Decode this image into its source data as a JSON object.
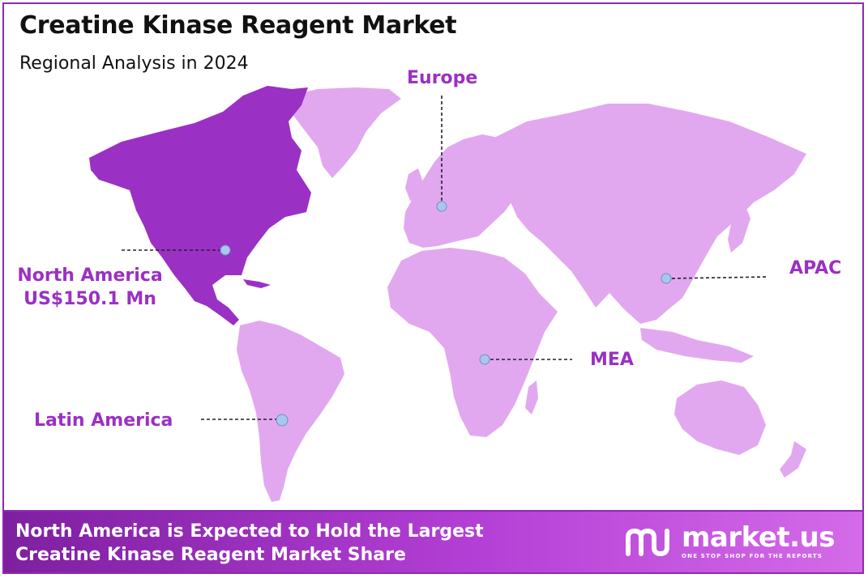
{
  "title": "Creatine Kinase Reagent Market",
  "subtitle": "Regional Analysis in 2024",
  "regions": [
    {
      "name": "North America",
      "value": "US$150.1 Mn",
      "highlighted": true
    },
    {
      "name": "Europe",
      "highlighted": false
    },
    {
      "name": "APAC",
      "highlighted": false
    },
    {
      "name": "MEA",
      "highlighted": false
    },
    {
      "name": "Latin America",
      "highlighted": false
    }
  ],
  "footer": {
    "line1": "North America is Expected to Hold the Largest",
    "line2": "Creatine Kinase Reagent Market Share"
  },
  "brand": {
    "name": "market.us",
    "tagline": "ONE STOP SHOP FOR THE REPORTS",
    "icon": "market-us-logo-icon"
  },
  "colors": {
    "highlight": "#9b30c4",
    "land": "#e2a8ef",
    "label": "#9b30c4",
    "marker": "#a9c6ee"
  }
}
